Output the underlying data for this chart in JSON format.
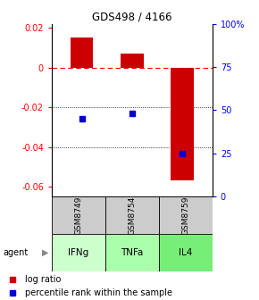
{
  "title": "GDS498 / 4166",
  "bar_positions": [
    1,
    2,
    3
  ],
  "bar_values": [
    0.015,
    0.007,
    -0.057
  ],
  "blue_dot_percentile": [
    45,
    48,
    25
  ],
  "categories": [
    "GSM8749",
    "GSM8754",
    "GSM8759"
  ],
  "agent_labels": [
    "IFNg",
    "TNFa",
    "IL4"
  ],
  "bar_color": "#cc0000",
  "dot_color": "#0000cc",
  "ylim_left": [
    -0.065,
    0.022
  ],
  "ylim_right": [
    0,
    100
  ],
  "y_ticks_left": [
    -0.06,
    -0.04,
    -0.02,
    0.0,
    0.02
  ],
  "y_ticks_right": [
    0,
    25,
    50,
    75,
    100
  ],
  "right_tick_labels": [
    "0",
    "25",
    "50",
    "75",
    "100%"
  ],
  "gsm_bg": "#cccccc",
  "agent_green_colors": [
    "#ccffcc",
    "#aaffaa",
    "#77ee77"
  ],
  "legend_log_ratio": "log ratio",
  "legend_percentile": "percentile rank within the sample",
  "bar_width": 0.45
}
